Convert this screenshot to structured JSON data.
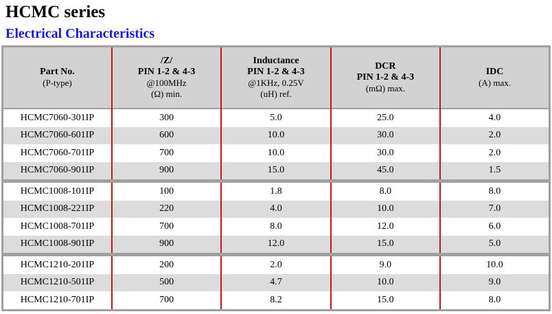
{
  "header": {
    "title": "HCMC series",
    "subtitle": "Electrical Characteristics"
  },
  "table": {
    "columns": [
      [
        "Part No.",
        "(P-type)"
      ],
      [
        "/Z/",
        "PIN 1-2 & 4-3",
        "@100MHz",
        "(Ω) min."
      ],
      [
        "Inductance",
        "PIN 1-2 & 4-3",
        "@1KHz, 0.25V",
        "(uH) ref."
      ],
      [
        "DCR",
        "PIN 1-2 & 4-3",
        "(mΩ) max."
      ],
      [
        "IDC",
        "(A) max."
      ]
    ],
    "groups": [
      [
        [
          "HCMC7060-301IP",
          "300",
          "5.0",
          "25.0",
          "4.0"
        ],
        [
          "HCMC7060-601IP",
          "600",
          "10.0",
          "30.0",
          "2.0"
        ],
        [
          "HCMC7060-701IP",
          "700",
          "10.0",
          "30.0",
          "2.0"
        ],
        [
          "HCMC7060-901IP",
          "900",
          "15.0",
          "45.0",
          "1.5"
        ]
      ],
      [
        [
          "HCMC1008-101IP",
          "100",
          "1.8",
          "8.0",
          "8.0"
        ],
        [
          "HCMC1008-221IP",
          "220",
          "4.0",
          "10.0",
          "7.0"
        ],
        [
          "HCMC1008-701IP",
          "700",
          "8.0",
          "12.0",
          "6.0"
        ],
        [
          "HCMC1008-901IP",
          "900",
          "12.0",
          "15.0",
          "5.0"
        ]
      ],
      [
        [
          "HCMC1210-201IP",
          "200",
          "2.0",
          "9.0",
          "10.0"
        ],
        [
          "HCMC1210-501IP",
          "500",
          "4.7",
          "10.0",
          "9.0"
        ],
        [
          "HCMC1210-701IP",
          "700",
          "8.2",
          "15.0",
          "8.0"
        ]
      ]
    ]
  }
}
